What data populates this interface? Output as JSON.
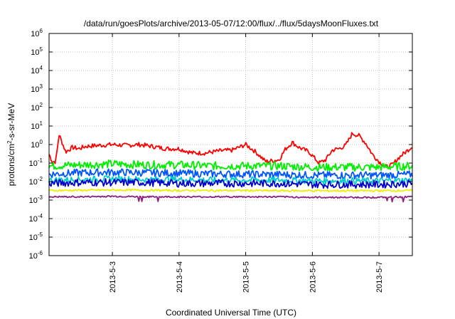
{
  "chart_data": {
    "type": "line",
    "title": "/data/run/goesPlots/archive/2013-05-07/12:00/flux/../flux/5daysMoonFluxes.txt",
    "xlabel": "Coordinated Universal Time (UTC)",
    "ylabel": "protons/cm²-s-sr-MeV",
    "yscale": "log",
    "ylim_exp": [
      -6,
      6
    ],
    "y_tick_labels": [
      "10^-6",
      "10^-5",
      "10^-4",
      "10^-3",
      "10^-2",
      "10^-1",
      "10^0",
      "10^1",
      "10^2",
      "10^3",
      "10^4",
      "10^5",
      "10^6"
    ],
    "xlim_days": [
      2.05,
      7.5
    ],
    "x_ticks": [
      {
        "label": "2013-5-3",
        "day": 3
      },
      {
        "label": "2013-5-4",
        "day": 4
      },
      {
        "label": "2013-5-5",
        "day": 5
      },
      {
        "label": "2013-5-6",
        "day": 6
      },
      {
        "label": "2013-5-7",
        "day": 7
      }
    ],
    "grid": true,
    "series": [
      {
        "color": "#ff0000",
        "x": [
          2.05,
          2.1,
          2.15,
          2.2,
          2.3,
          2.4,
          2.5,
          2.6,
          2.8,
          3,
          3.2,
          3.4,
          3.6,
          3.8,
          4,
          4.2,
          4.4,
          4.6,
          4.8,
          5,
          5.15,
          5.3,
          5.5,
          5.6,
          5.7,
          5.8,
          5.95,
          6.1,
          6.2,
          6.3,
          6.4,
          6.5,
          6.6,
          6.7,
          6.8,
          6.9,
          7,
          7.1,
          7.2,
          7.3,
          7.4,
          7.5
        ],
        "y": [
          0.3,
          0.12,
          0.12,
          3.5,
          0.4,
          0.7,
          0.6,
          0.8,
          0.9,
          1.0,
          0.9,
          1.0,
          0.8,
          0.6,
          0.6,
          0.35,
          0.35,
          0.45,
          0.5,
          1.0,
          0.4,
          0.12,
          0.15,
          0.6,
          1.3,
          0.7,
          0.4,
          0.1,
          0.15,
          0.5,
          0.6,
          0.9,
          4.0,
          3.0,
          1.2,
          0.3,
          0.12,
          0.06,
          0.08,
          0.2,
          0.4,
          0.8
        ]
      },
      {
        "color": "#00ee00",
        "x": [
          2.05,
          2.5,
          3,
          3.5,
          4,
          4.5,
          5,
          5.5,
          6,
          6.5,
          7,
          7.5
        ],
        "y": [
          0.07,
          0.08,
          0.09,
          0.08,
          0.08,
          0.07,
          0.07,
          0.07,
          0.06,
          0.06,
          0.06,
          0.07
        ]
      },
      {
        "color": "#0055ff",
        "x": [
          2.05,
          2.5,
          3,
          3.5,
          4,
          4.5,
          5,
          5.5,
          6,
          6.5,
          7,
          7.5
        ],
        "y": [
          0.025,
          0.03,
          0.032,
          0.03,
          0.028,
          0.026,
          0.025,
          0.024,
          0.022,
          0.022,
          0.022,
          0.024
        ]
      },
      {
        "color": "#00cccc",
        "x": [
          2.05,
          2.5,
          3,
          3.5,
          4,
          4.5,
          5,
          5.5,
          6,
          6.5,
          7,
          7.5
        ],
        "y": [
          0.012,
          0.013,
          0.014,
          0.013,
          0.013,
          0.012,
          0.012,
          0.012,
          0.011,
          0.011,
          0.011,
          0.012
        ]
      },
      {
        "color": "#0000cc",
        "x": [
          2.05,
          2.5,
          3,
          3.5,
          4,
          4.5,
          5,
          5.5,
          6,
          6.5,
          7,
          7.5
        ],
        "y": [
          0.008,
          0.009,
          0.009,
          0.009,
          0.008,
          0.008,
          0.008,
          0.008,
          0.007,
          0.007,
          0.007,
          0.008
        ]
      },
      {
        "color": "#eeee00",
        "x": [
          2.05,
          2.5,
          3,
          3.5,
          4,
          4.5,
          5,
          5.5,
          6,
          6.5,
          7,
          7.5
        ],
        "y": [
          0.0033,
          0.0034,
          0.0035,
          0.0034,
          0.0033,
          0.0033,
          0.0033,
          0.0032,
          0.0032,
          0.0032,
          0.0032,
          0.0033
        ]
      },
      {
        "color": "#8b2080",
        "x": [
          2.05,
          2.5,
          3,
          3.5,
          4,
          4.5,
          5,
          5.5,
          6,
          6.5,
          7,
          7.5
        ],
        "y": [
          0.0015,
          0.0015,
          0.0016,
          0.0015,
          0.0015,
          0.0015,
          0.0015,
          0.0015,
          0.0014,
          0.0014,
          0.0014,
          0.0015
        ]
      }
    ]
  }
}
